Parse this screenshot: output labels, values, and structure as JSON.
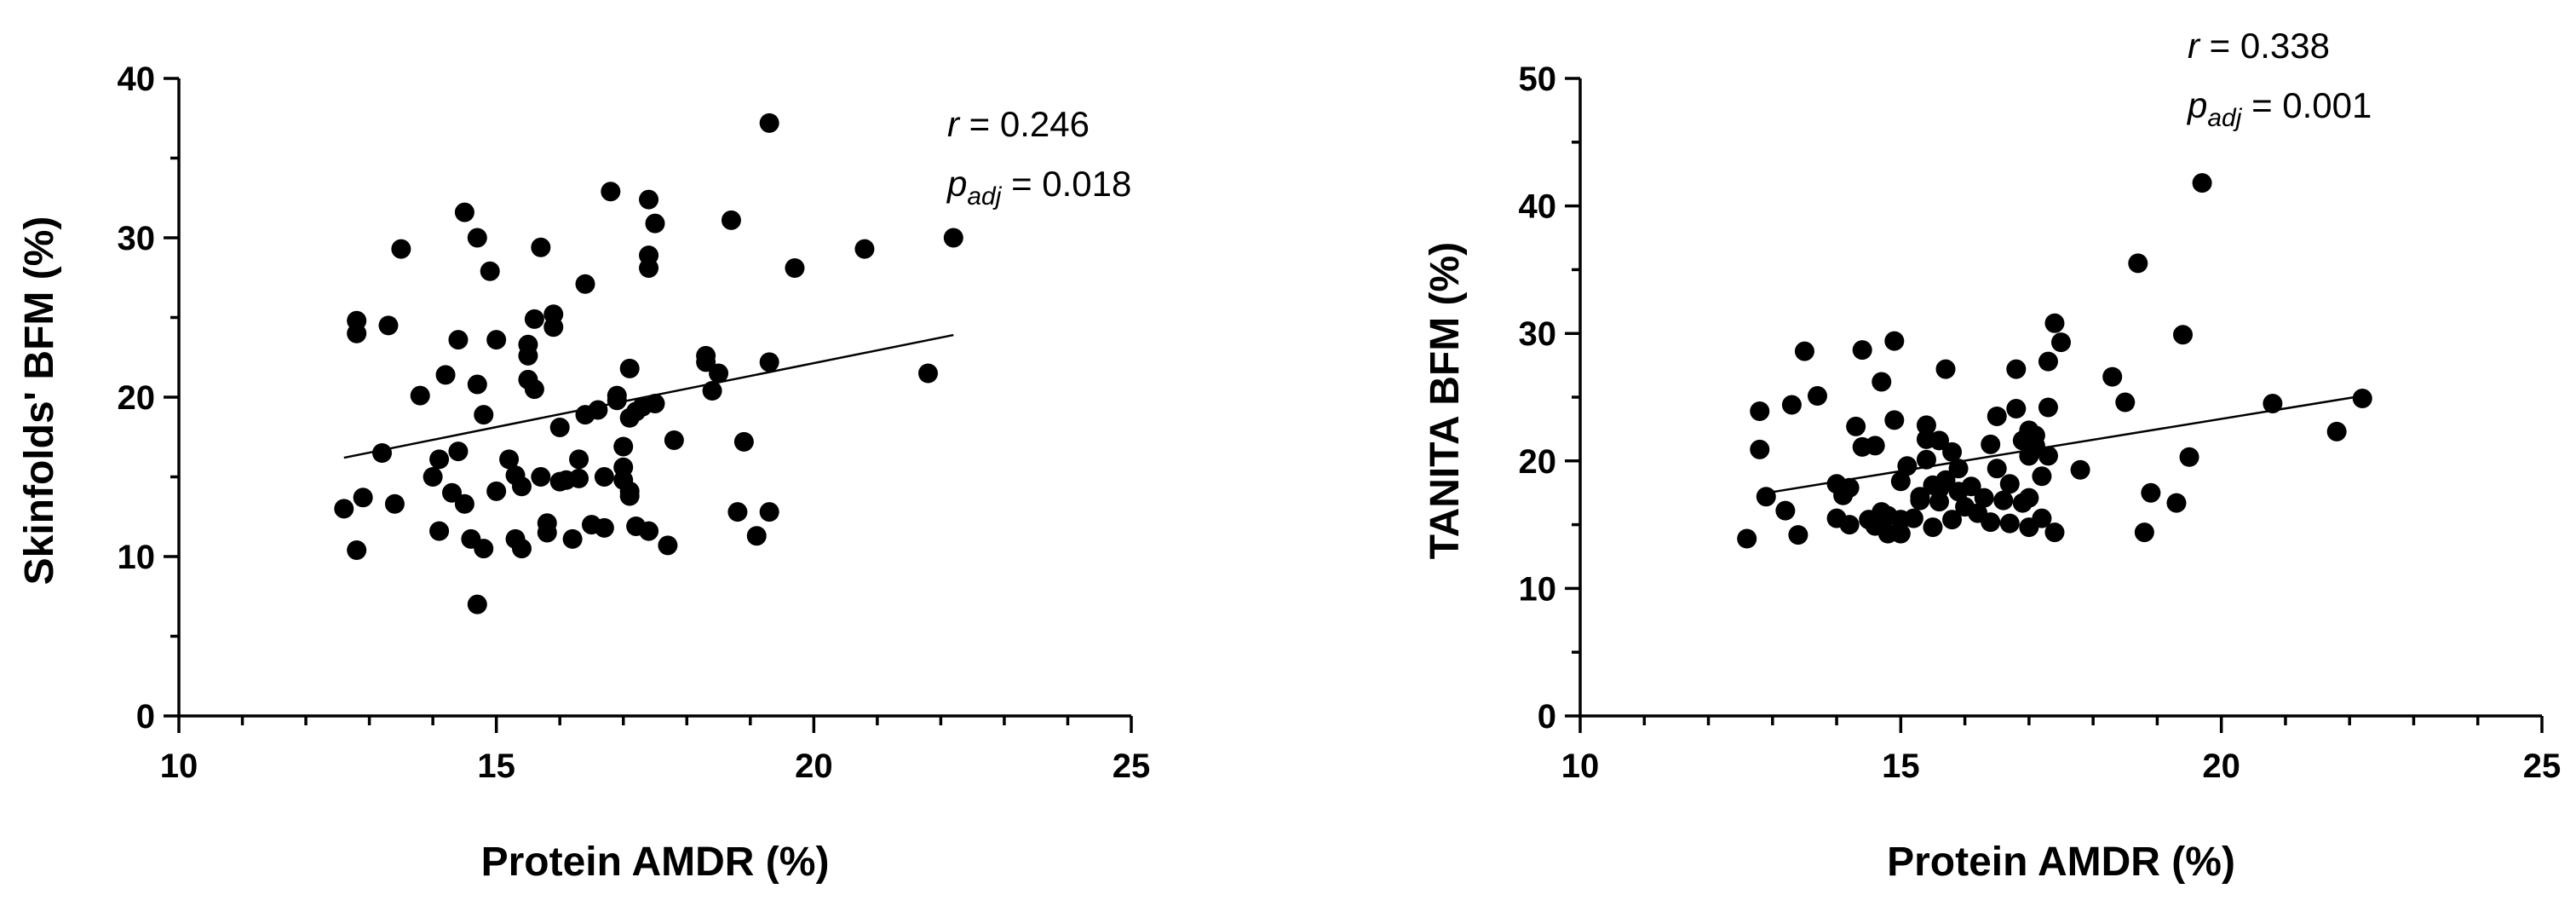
{
  "chart_data": [
    {
      "type": "scatter",
      "xlabel": "Protein AMDR (%)",
      "ylabel": "Skinfolds' BFM (%)",
      "xlim": [
        10,
        25
      ],
      "ylim": [
        0,
        40
      ],
      "xticks": [
        "10",
        "15",
        "20",
        "25"
      ],
      "yticks": [
        "0",
        "10",
        "20",
        "30",
        "40"
      ],
      "annotation": {
        "r_label": "r",
        "r_value": " = 0.246",
        "p_label": "p",
        "p_sub": "adj",
        "p_value": " = 0.018"
      },
      "trendline": {
        "x": [
          12.6,
          22.2
        ],
        "y": [
          16.2,
          23.9
        ]
      },
      "points": [
        [
          12.6,
          13.0
        ],
        [
          12.8,
          10.4
        ],
        [
          12.8,
          24.8
        ],
        [
          12.8,
          24.0
        ],
        [
          12.9,
          13.7
        ],
        [
          13.2,
          16.5
        ],
        [
          13.3,
          24.5
        ],
        [
          13.5,
          29.3
        ],
        [
          13.4,
          13.3
        ],
        [
          13.8,
          20.1
        ],
        [
          14.0,
          15.0
        ],
        [
          14.1,
          11.6
        ],
        [
          14.1,
          16.1
        ],
        [
          14.2,
          21.4
        ],
        [
          14.3,
          14.0
        ],
        [
          14.4,
          23.6
        ],
        [
          14.4,
          16.6
        ],
        [
          14.5,
          31.6
        ],
        [
          14.5,
          13.3
        ],
        [
          14.6,
          11.1
        ],
        [
          14.7,
          30.0
        ],
        [
          14.7,
          20.8
        ],
        [
          14.7,
          7.0
        ],
        [
          14.8,
          18.9
        ],
        [
          14.8,
          10.5
        ],
        [
          14.9,
          27.9
        ],
        [
          15.0,
          23.6
        ],
        [
          15.0,
          14.1
        ],
        [
          15.2,
          16.1
        ],
        [
          15.3,
          11.1
        ],
        [
          15.3,
          15.1
        ],
        [
          15.4,
          10.5
        ],
        [
          15.4,
          14.4
        ],
        [
          15.5,
          23.3
        ],
        [
          15.5,
          21.1
        ],
        [
          15.5,
          22.6
        ],
        [
          15.6,
          20.5
        ],
        [
          15.6,
          24.9
        ],
        [
          15.7,
          29.4
        ],
        [
          15.7,
          15.0
        ],
        [
          15.8,
          11.5
        ],
        [
          15.8,
          12.1
        ],
        [
          15.9,
          25.2
        ],
        [
          15.9,
          24.4
        ],
        [
          16.0,
          18.1
        ],
        [
          16.0,
          14.7
        ],
        [
          16.1,
          14.8
        ],
        [
          16.2,
          11.1
        ],
        [
          16.3,
          14.9
        ],
        [
          16.3,
          16.1
        ],
        [
          16.4,
          27.1
        ],
        [
          16.4,
          18.9
        ],
        [
          16.5,
          12.0
        ],
        [
          16.6,
          19.2
        ],
        [
          16.7,
          15.0
        ],
        [
          16.7,
          11.8
        ],
        [
          16.8,
          32.9
        ],
        [
          16.9,
          20.1
        ],
        [
          16.9,
          19.8
        ],
        [
          17.0,
          16.9
        ],
        [
          17.0,
          15.6
        ],
        [
          17.0,
          14.8
        ],
        [
          17.1,
          14.1
        ],
        [
          17.1,
          18.7
        ],
        [
          17.1,
          21.8
        ],
        [
          17.1,
          13.8
        ],
        [
          17.2,
          11.9
        ],
        [
          17.2,
          19.1
        ],
        [
          17.3,
          19.4
        ],
        [
          17.4,
          32.4
        ],
        [
          17.4,
          28.9
        ],
        [
          17.4,
          28.1
        ],
        [
          17.4,
          11.6
        ],
        [
          17.5,
          30.9
        ],
        [
          17.5,
          19.6
        ],
        [
          17.7,
          10.7
        ],
        [
          17.8,
          17.3
        ],
        [
          18.3,
          22.6
        ],
        [
          18.3,
          22.2
        ],
        [
          18.4,
          20.4
        ],
        [
          18.5,
          21.5
        ],
        [
          18.7,
          31.1
        ],
        [
          18.8,
          12.8
        ],
        [
          18.9,
          17.2
        ],
        [
          19.1,
          11.3
        ],
        [
          19.3,
          12.8
        ],
        [
          19.3,
          37.2
        ],
        [
          19.3,
          22.2
        ],
        [
          19.7,
          28.1
        ],
        [
          20.8,
          29.3
        ],
        [
          21.8,
          21.5
        ],
        [
          22.2,
          30.0
        ]
      ]
    },
    {
      "type": "scatter",
      "xlabel": "Protein AMDR (%)",
      "ylabel": "TANITA BFM (%)",
      "xlim": [
        10,
        25
      ],
      "ylim": [
        0,
        50
      ],
      "xticks": [
        "10",
        "15",
        "20",
        "25"
      ],
      "yticks": [
        "0",
        "10",
        "20",
        "30",
        "40",
        "50"
      ],
      "annotation": {
        "r_label": "r",
        "r_value": " = 0.338",
        "p_label": "p",
        "p_sub": "adj",
        "p_value": " = 0.001"
      },
      "trendline": {
        "x": [
          12.8,
          22.2
        ],
        "y": [
          17.4,
          25.1
        ]
      },
      "points": [
        [
          12.6,
          13.9
        ],
        [
          12.8,
          23.9
        ],
        [
          12.8,
          20.9
        ],
        [
          12.9,
          17.2
        ],
        [
          13.2,
          16.1
        ],
        [
          13.3,
          24.4
        ],
        [
          13.5,
          28.6
        ],
        [
          13.4,
          14.2
        ],
        [
          13.7,
          25.1
        ],
        [
          14.0,
          18.2
        ],
        [
          14.0,
          15.5
        ],
        [
          14.1,
          17.3
        ],
        [
          14.2,
          17.9
        ],
        [
          14.2,
          15.0
        ],
        [
          14.3,
          22.7
        ],
        [
          14.4,
          21.1
        ],
        [
          14.4,
          28.7
        ],
        [
          14.5,
          15.4
        ],
        [
          14.6,
          14.9
        ],
        [
          14.6,
          21.2
        ],
        [
          14.7,
          26.2
        ],
        [
          14.7,
          16.0
        ],
        [
          14.8,
          15.7
        ],
        [
          14.8,
          14.3
        ],
        [
          14.9,
          29.4
        ],
        [
          14.9,
          23.2
        ],
        [
          15.0,
          15.4
        ],
        [
          15.0,
          18.4
        ],
        [
          15.0,
          14.3
        ],
        [
          15.1,
          19.6
        ],
        [
          15.2,
          15.5
        ],
        [
          15.3,
          16.9
        ],
        [
          15.3,
          17.2
        ],
        [
          15.4,
          22.8
        ],
        [
          15.4,
          21.7
        ],
        [
          15.4,
          20.1
        ],
        [
          15.5,
          18.1
        ],
        [
          15.5,
          14.8
        ],
        [
          15.6,
          16.8
        ],
        [
          15.6,
          17.8
        ],
        [
          15.6,
          21.6
        ],
        [
          15.7,
          18.5
        ],
        [
          15.7,
          27.2
        ],
        [
          15.8,
          20.7
        ],
        [
          15.8,
          15.4
        ],
        [
          15.9,
          19.4
        ],
        [
          15.9,
          17.6
        ],
        [
          16.0,
          16.4
        ],
        [
          16.1,
          18.0
        ],
        [
          16.2,
          15.9
        ],
        [
          16.3,
          17.1
        ],
        [
          16.4,
          15.2
        ],
        [
          16.4,
          21.3
        ],
        [
          16.5,
          19.4
        ],
        [
          16.5,
          23.5
        ],
        [
          16.6,
          16.9
        ],
        [
          16.7,
          18.2
        ],
        [
          16.7,
          15.1
        ],
        [
          16.8,
          27.2
        ],
        [
          16.8,
          24.1
        ],
        [
          16.9,
          21.6
        ],
        [
          16.9,
          16.7
        ],
        [
          17.0,
          17.1
        ],
        [
          17.0,
          14.8
        ],
        [
          17.0,
          20.4
        ],
        [
          17.0,
          22.4
        ],
        [
          17.1,
          21.2
        ],
        [
          17.1,
          22.0
        ],
        [
          17.2,
          18.8
        ],
        [
          17.2,
          15.5
        ],
        [
          17.3,
          27.8
        ],
        [
          17.3,
          24.2
        ],
        [
          17.3,
          20.4
        ],
        [
          17.4,
          14.4
        ],
        [
          17.4,
          30.8
        ],
        [
          17.5,
          29.3
        ],
        [
          17.8,
          19.3
        ],
        [
          18.3,
          26.6
        ],
        [
          18.5,
          24.6
        ],
        [
          18.7,
          35.5
        ],
        [
          18.8,
          14.4
        ],
        [
          18.9,
          17.5
        ],
        [
          19.3,
          16.7
        ],
        [
          19.4,
          29.9
        ],
        [
          19.5,
          20.3
        ],
        [
          19.7,
          41.8
        ],
        [
          20.8,
          24.5
        ],
        [
          21.8,
          22.3
        ],
        [
          22.2,
          24.9
        ]
      ]
    }
  ]
}
